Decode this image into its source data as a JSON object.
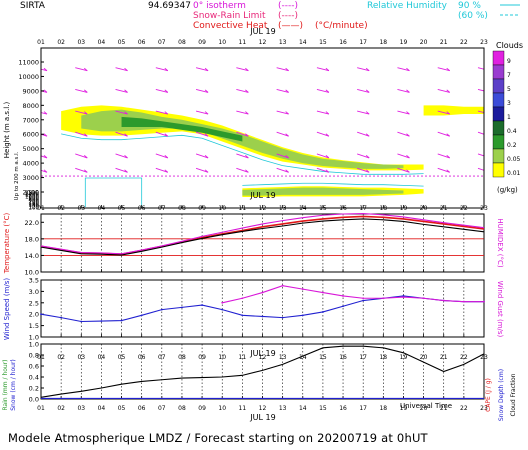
{
  "header": {
    "site": "SIRTA",
    "coords": "94.69347",
    "legend_left": [
      {
        "label": "0° isotherm",
        "sym": "(----)",
        "color": "#d817d8"
      },
      {
        "label": "Snow-Rain Limit",
        "sym": "(----)",
        "color": "#e8287a"
      },
      {
        "label": "Convective Heat",
        "sym": "(——)",
        "extra": "(°C/minute)",
        "color": "#e01818"
      }
    ],
    "legend_right": [
      {
        "label": "Relative Humidity",
        "pct": "90 %",
        "color": "#20c8d8"
      },
      {
        "label": "",
        "pct": "(60 %)",
        "color": "#20c8d8"
      }
    ]
  },
  "colorbar": {
    "title": "Clouds",
    "unit": "(g/kg)",
    "labels": [
      "9",
      "7",
      "5",
      "3",
      "1",
      "0.4",
      "0.2",
      "0.05",
      "0.01"
    ],
    "colors": [
      "#e020e0",
      "#9a3cd0",
      "#5c40c8",
      "#3c4cd8",
      "#1c1c9c",
      "#1c6c2c",
      "#2c9a2c",
      "#9cd04c",
      "#ffff00"
    ]
  },
  "hour_labels": [
    "01",
    "02",
    "03",
    "04",
    "05",
    "06",
    "07",
    "08",
    "09",
    "10",
    "11",
    "12",
    "13",
    "14",
    "15",
    "16",
    "17",
    "18",
    "19",
    "20",
    "21",
    "22",
    "23"
  ],
  "date_label": "JUL 19",
  "footer": {
    "model": "Modele Atmospherique LMDZ / Forecast starting on 20200719 at 0hUT",
    "universal_time": "Universal Time"
  },
  "chart_data": [
    {
      "type": "heatmap",
      "title": "Clouds",
      "ylabel": "Height (m a.s.l.)",
      "ylabel2": "Up to 200 m a.s.l.",
      "yticks_upper": [
        11000,
        10000,
        9000,
        8000,
        7000,
        6000,
        5000,
        4000,
        3000,
        2000
      ],
      "yticks_lower": [
        1500,
        1400,
        1200,
        1000,
        800,
        600,
        400,
        200,
        180,
        160,
        140,
        120,
        100
      ],
      "cloud_layers": [
        {
          "level": 1,
          "x": [
            2,
            3,
            4,
            5,
            6,
            7,
            8,
            9,
            10,
            11,
            12,
            13,
            14,
            15,
            16,
            17,
            18,
            19,
            20
          ],
          "top": [
            7600,
            7900,
            8000,
            7900,
            7700,
            7500,
            7300,
            7000,
            6600,
            6100,
            5600,
            5100,
            4700,
            4400,
            4200,
            4050,
            3900,
            3900,
            3900
          ],
          "bot": [
            6300,
            6000,
            5900,
            5900,
            6000,
            6100,
            6200,
            6000,
            5500,
            5000,
            4500,
            4100,
            3900,
            3700,
            3600,
            3500,
            3500,
            3500,
            3550
          ]
        },
        {
          "level": 2,
          "x": [
            3,
            4,
            5,
            6,
            7,
            8,
            9,
            10,
            11,
            12,
            13,
            14,
            15,
            16,
            17,
            18,
            19
          ],
          "top": [
            7300,
            7600,
            7700,
            7500,
            7200,
            7000,
            6700,
            6400,
            6000,
            5500,
            5000,
            4600,
            4300,
            4150,
            4000,
            3900,
            3850
          ],
          "bot": [
            6400,
            6200,
            6200,
            6300,
            6400,
            6400,
            6200,
            5700,
            5200,
            4700,
            4300,
            4000,
            3800,
            3700,
            3600,
            3600,
            3650
          ]
        },
        {
          "level": 3,
          "x": [
            5,
            6,
            7,
            8,
            9,
            10,
            11
          ],
          "top": [
            7200,
            7100,
            6900,
            6700,
            6500,
            6200,
            5900
          ],
          "bot": [
            6500,
            6500,
            6500,
            6300,
            6100,
            5800,
            5500
          ]
        },
        {
          "level": 1,
          "x": [
            20,
            21,
            22,
            23
          ],
          "top": [
            8000,
            8000,
            7900,
            7900
          ],
          "bot": [
            7300,
            7300,
            7400,
            7400
          ]
        },
        {
          "level": 1,
          "x": [
            11,
            12,
            13,
            14,
            15,
            16,
            17,
            18,
            19,
            20
          ],
          "top": [
            2250,
            2300,
            2350,
            2400,
            2400,
            2350,
            2300,
            2300,
            2250,
            2200
          ],
          "bot": [
            1650,
            1650,
            1700,
            1700,
            1700,
            1700,
            1700,
            1750,
            1800,
            1900
          ]
        },
        {
          "level": 2,
          "x": [
            11,
            12,
            13,
            14,
            15,
            16,
            17,
            18,
            19
          ],
          "top": [
            2150,
            2200,
            2250,
            2300,
            2300,
            2250,
            2200,
            2150,
            2100
          ],
          "bot": [
            1750,
            1750,
            1800,
            1800,
            1800,
            1800,
            1800,
            1850,
            1900
          ]
        }
      ],
      "freezing_level": 3100,
      "wind_barbs_hours": [
        1,
        3,
        5,
        7,
        9,
        11,
        13,
        15,
        17,
        19,
        21,
        23
      ]
    },
    {
      "type": "line",
      "x": [
        1,
        2,
        3,
        4,
        5,
        6,
        7,
        8,
        9,
        10,
        11,
        12,
        13,
        14,
        15,
        16,
        17,
        18,
        19,
        20,
        21,
        22,
        23
      ],
      "ylabel": "Temperature (°C)",
      "ylabel2": "HUMIDEX (°C)",
      "yticks": [
        10,
        14,
        18,
        22
      ],
      "ylim": [
        10,
        24
      ],
      "series": [
        {
          "values": [
            16.2,
            15.4,
            14.6,
            14.5,
            14.3,
            15.2,
            16.2,
            17.2,
            18.3,
            19.2,
            20.0,
            20.9,
            21.6,
            22.3,
            22.8,
            23.2,
            23.4,
            23.2,
            22.8,
            22.2,
            21.6,
            21.0,
            20.4
          ],
          "color": "#e01818"
        },
        {
          "values": [
            16.0,
            15.2,
            14.4,
            14.3,
            14.1,
            15.0,
            16.0,
            17.1,
            18.1,
            19.0,
            19.8,
            20.5,
            21.1,
            21.8,
            22.3,
            22.6,
            22.8,
            22.6,
            22.2,
            21.5,
            20.9,
            20.3,
            19.7
          ],
          "color": "#000000"
        },
        {
          "values": [
            16.3,
            15.5,
            14.7,
            14.6,
            14.4,
            15.3,
            16.3,
            17.4,
            18.6,
            19.6,
            20.6,
            21.6,
            22.4,
            23.1,
            23.7,
            24.0,
            24.1,
            23.8,
            23.3,
            22.6,
            21.9,
            21.3,
            20.7
          ],
          "color": "#d817d8"
        }
      ]
    },
    {
      "type": "line",
      "x": [
        1,
        2,
        3,
        4,
        5,
        6,
        7,
        8,
        9,
        10,
        11,
        12,
        13,
        14,
        15,
        16,
        17,
        18,
        19,
        20,
        21,
        22,
        23
      ],
      "ylabel": "Wind Speed (m/s)",
      "ylabel2": "Wind Gust (m/s)",
      "yticks": [
        1.0,
        1.5,
        2.0,
        2.5,
        3.0,
        3.5
      ],
      "ylim": [
        1.0,
        3.5
      ],
      "series": [
        {
          "values": [
            2.0,
            1.85,
            1.68,
            1.7,
            1.72,
            1.95,
            2.2,
            2.3,
            2.4,
            2.2,
            1.95,
            1.9,
            1.85,
            1.95,
            2.1,
            2.35,
            2.6,
            2.7,
            2.8,
            2.7,
            2.6,
            2.55,
            2.55
          ],
          "color": "#2020d0"
        },
        {
          "values": [
            null,
            null,
            null,
            null,
            null,
            null,
            null,
            null,
            null,
            2.5,
            2.7,
            2.95,
            3.25,
            3.1,
            2.95,
            2.8,
            2.7,
            2.7,
            2.75,
            2.7,
            2.6,
            2.55,
            2.55
          ],
          "color": "#d817d8"
        }
      ]
    },
    {
      "type": "line",
      "x": [
        1,
        2,
        3,
        4,
        5,
        6,
        7,
        8,
        9,
        10,
        11,
        12,
        13,
        14,
        15,
        16,
        17,
        18,
        19,
        20,
        21,
        22,
        23
      ],
      "ylabel": "Rain (mm / hour)",
      "ylabel2": "Snow (cm / hour)",
      "ylabel3": "CAPE (J / g)",
      "ylabel4": "Snow Depth (cm)",
      "ylabel5": "Cloud Fraction",
      "yticks": [
        0.0,
        0.2,
        0.4,
        0.6,
        0.8,
        1.0
      ],
      "ylim": [
        0.0,
        1.0
      ],
      "series": [
        {
          "values": [
            0.03,
            0.09,
            0.14,
            0.2,
            0.27,
            0.32,
            0.35,
            0.38,
            0.39,
            0.4,
            0.43,
            0.52,
            0.63,
            0.78,
            0.93,
            0.96,
            0.96,
            0.93,
            0.84,
            0.67,
            0.5,
            0.63,
            0.82
          ],
          "color": "#000000"
        },
        {
          "values": [
            0.01,
            0.01,
            0.01,
            0.01,
            0.01,
            0.01,
            0.01,
            0.01,
            0.01,
            0.01,
            0.01,
            0.01,
            0.01,
            0.01,
            0.01,
            0.01,
            0.01,
            0.01,
            0.01,
            0.01,
            0.01,
            0.01,
            0.01
          ],
          "color": "#2020d0"
        }
      ]
    }
  ]
}
